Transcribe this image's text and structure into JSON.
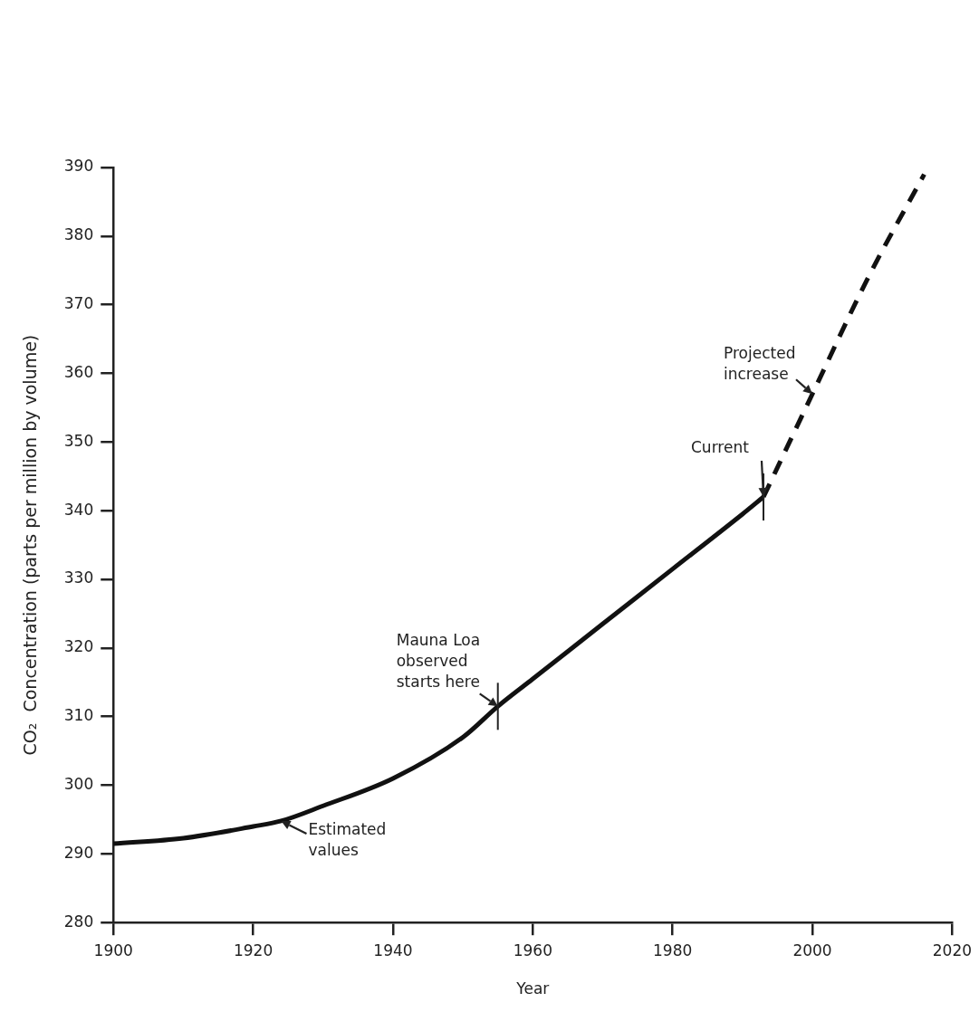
{
  "chart_data": {
    "type": "line",
    "xlabel": "Year",
    "ylabel": "CO₂  Concentration (parts per million by volume)",
    "xlim": [
      1900,
      2020
    ],
    "xticks": [
      1900,
      1920,
      1940,
      1960,
      1980,
      2000,
      2020
    ],
    "ylim": [
      280,
      390
    ],
    "yticks": [
      280,
      290,
      300,
      310,
      320,
      330,
      340,
      350,
      360,
      370,
      380,
      390
    ],
    "grid": false,
    "legend": false,
    "marker": "none",
    "series": [
      {
        "color": "#111111",
        "line_style": "solid",
        "x": [
          1900,
          1910,
          1920,
          1924,
          1930,
          1940,
          1950,
          1955,
          1960,
          1970,
          1980,
          1990,
          1993
        ],
        "values": [
          291.5,
          292.3,
          294,
          294.8,
          297,
          301,
          307,
          311.5,
          315.5,
          323.5,
          331.5,
          339.5,
          342
        ]
      },
      {
        "color": "#111111",
        "line_style": "dashed",
        "x": [
          1993,
          2000,
          2008,
          2016
        ],
        "values": [
          342,
          357,
          374,
          389
        ]
      }
    ],
    "annotations": [
      {
        "text": "Estimated\nvalues",
        "x": 1924,
        "y": 294.8
      },
      {
        "text": "Mauna Loa\nobserved\nstarts here",
        "x": 1955,
        "y": 311.5
      },
      {
        "text": "Current",
        "x": 1993,
        "y": 342
      },
      {
        "text": "Projected\nincrease",
        "x": 2000,
        "y": 357
      }
    ]
  }
}
